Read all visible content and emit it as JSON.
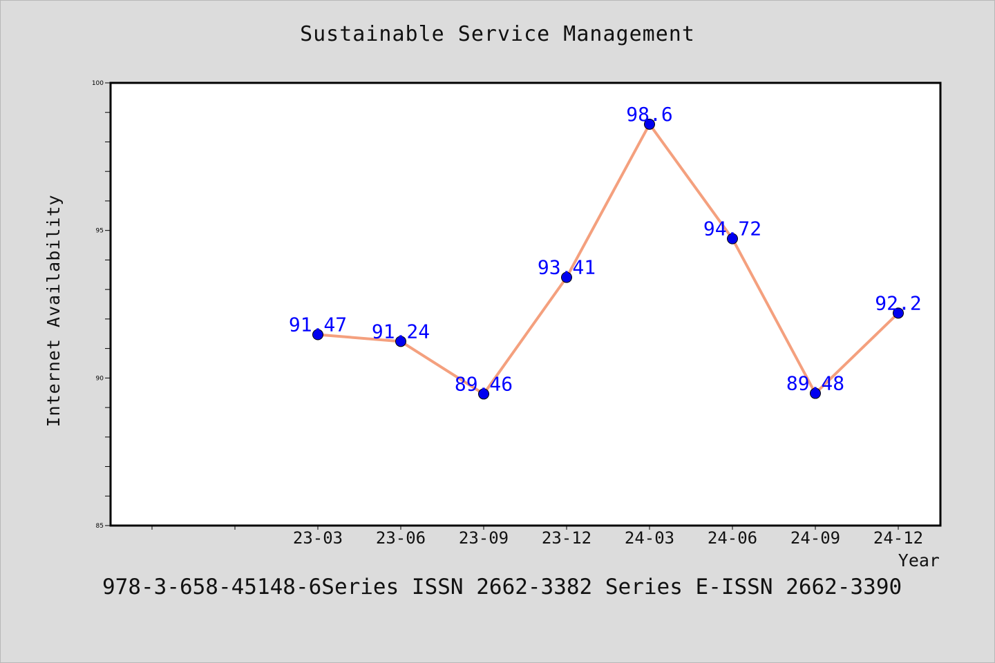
{
  "title": "Sustainable Service Management",
  "footer": "978-3-658-45148-6Series ISSN 2662-3382 Series E-ISSN 2662-3390",
  "colors": {
    "line": "#f4a07e",
    "marker": "#0000ee",
    "label": "#0000ff",
    "background": "#dcdcdc",
    "plot_area": "#ffffff"
  },
  "chart_data": {
    "type": "line",
    "title": "Sustainable Service Management",
    "xlabel": "Year",
    "ylabel": "Internet Availability",
    "categories": [
      "23-03",
      "23-06",
      "23-09",
      "23-12",
      "24-03",
      "24-06",
      "24-09",
      "24-12"
    ],
    "values": [
      91.47,
      91.24,
      89.46,
      93.41,
      98.6,
      94.72,
      89.48,
      92.2
    ],
    "data_labels": [
      "91.47",
      "91.24",
      "89.46",
      "93.41",
      "98.6",
      "94.72",
      "89.48",
      "92.2"
    ],
    "ylim": [
      85,
      100
    ],
    "yticks": [
      "85",
      "90",
      "95",
      "100"
    ],
    "grid": false,
    "legend": "none"
  }
}
